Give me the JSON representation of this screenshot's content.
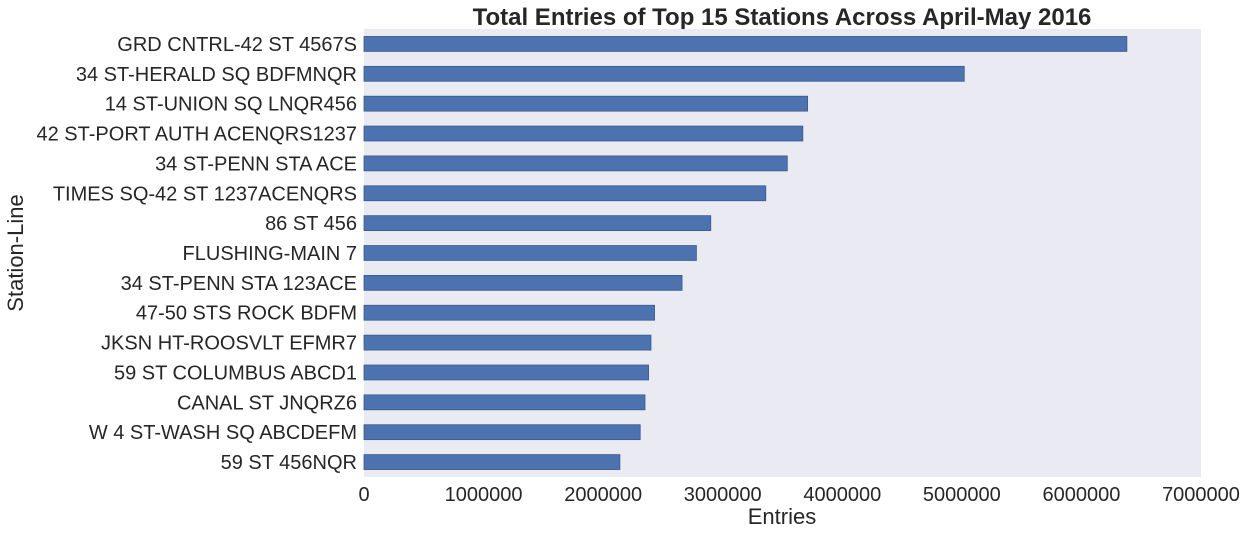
{
  "chart_data": {
    "type": "bar",
    "orientation": "horizontal",
    "title": "Total Entries of Top 15 Stations Across April-May 2016",
    "xlabel": "Entries",
    "ylabel": "Station-Line",
    "xlim": [
      0,
      7000000
    ],
    "x_ticks": [
      "0",
      "1000000",
      "2000000",
      "3000000",
      "4000000",
      "5000000",
      "6000000",
      "7000000"
    ],
    "grid": false,
    "background_color": "#EAEAF2",
    "bar_color": "#4C72B0",
    "categories": [
      "GRD CNTRL-42 ST 4567S",
      "34 ST-HERALD SQ BDFMNQR",
      "14 ST-UNION SQ LNQR456",
      "42 ST-PORT AUTH ACENQRS1237",
      "34 ST-PENN STA ACE",
      "TIMES SQ-42 ST 1237ACENQRS",
      "86 ST 456",
      "FLUSHING-MAIN 7",
      "34 ST-PENN STA 123ACE",
      "47-50 STS ROCK BDFM",
      "JKSN HT-ROOSVLT EFMR7",
      "59 ST COLUMBUS ABCD1",
      "CANAL ST JNQRZ6",
      "W 4 ST-WASH SQ ABCDEFM",
      "59 ST 456NQR"
    ],
    "values": [
      6380000,
      5020000,
      3710000,
      3670000,
      3540000,
      3360000,
      2900000,
      2780000,
      2660000,
      2430000,
      2400000,
      2380000,
      2350000,
      2310000,
      2140000
    ]
  }
}
